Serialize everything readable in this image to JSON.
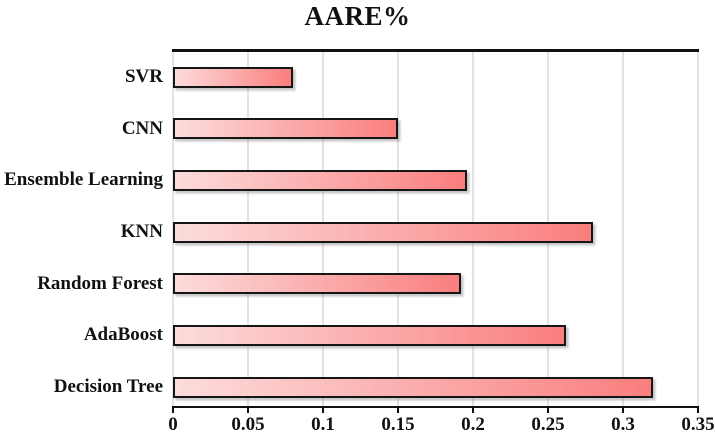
{
  "title": "AARE%",
  "chart_data": {
    "type": "bar",
    "orientation": "horizontal",
    "title": "AARE%",
    "xlabel": "",
    "ylabel": "",
    "categories": [
      "SVR",
      "CNN",
      "Ensemble Learning",
      "KNN",
      "Random Forest",
      "AdaBoost",
      "Decision Tree"
    ],
    "values": [
      0.08,
      0.15,
      0.196,
      0.28,
      0.192,
      0.262,
      0.32
    ],
    "xlim": [
      0,
      0.35
    ],
    "x_ticks": [
      0,
      0.05,
      0.1,
      0.15,
      0.2,
      0.25,
      0.3,
      0.35
    ],
    "x_tick_labels": [
      "0",
      "0.05",
      "0.1",
      "0.15",
      "0.2",
      "0.25",
      "0.3",
      "0.35"
    ],
    "grid": "vertical-gridlines",
    "legend": "none",
    "colors": {
      "bar_gradient_start": "#fcdcdc",
      "bar_gradient_end": "#fa7e7e",
      "bar_border": "#161616",
      "gridline": "#e3e3e3",
      "axis": "#111111",
      "text": "#111111"
    }
  }
}
